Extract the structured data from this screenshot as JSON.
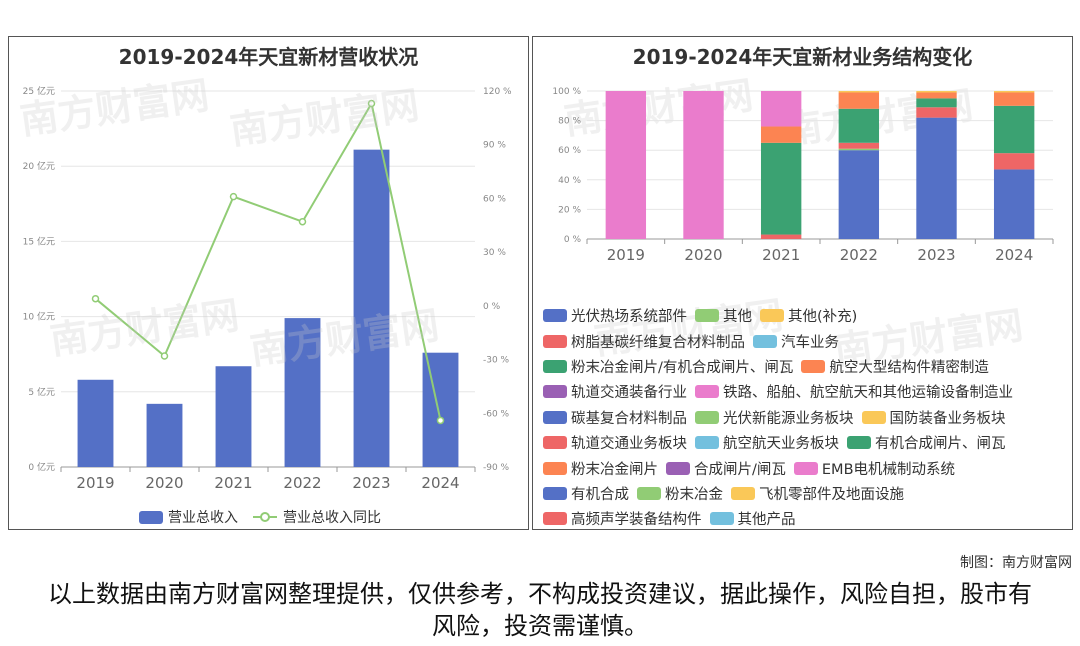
{
  "chart_data": [
    {
      "type": "bar",
      "title": "2019-2024年天宜新材营收状况",
      "categories": [
        "2019",
        "2020",
        "2021",
        "2022",
        "2023",
        "2024"
      ],
      "series": [
        {
          "name": "营业总收入",
          "type": "bar",
          "axis": "left",
          "unit": "亿元",
          "values": [
            5.8,
            4.2,
            6.7,
            9.9,
            21.1,
            7.6
          ]
        },
        {
          "name": "营业总收入同比",
          "type": "line",
          "axis": "right",
          "unit": "%",
          "values": [
            4,
            -28,
            61,
            47,
            113,
            -64
          ]
        }
      ],
      "y_left": {
        "ticks": [
          "0 亿元",
          "5 亿元",
          "10 亿元",
          "15 亿元",
          "20 亿元",
          "25 亿元"
        ],
        "ylim": [
          0,
          25
        ]
      },
      "y_right": {
        "ticks": [
          "-90 %",
          "-60 %",
          "-30 %",
          "0 %",
          "30 %",
          "60 %",
          "90 %",
          "120 %"
        ],
        "ylim": [
          -90,
          120
        ]
      },
      "grid": true,
      "colors": {
        "bar": "#5470c6",
        "line": "#91cc75"
      }
    },
    {
      "type": "bar",
      "stacked": true,
      "title": "2019-2024年天宜新材业务结构变化",
      "categories": [
        "2019",
        "2020",
        "2021",
        "2022",
        "2023",
        "2024"
      ],
      "y_ticks": [
        "0 %",
        "20 %",
        "40 %",
        "60 %",
        "80 %",
        "100 %"
      ],
      "ylim": [
        0,
        100
      ],
      "legend": [
        [
          "光伏热场系统部件",
          "其他",
          "其他(补充)"
        ],
        [
          "树脂基碳纤维复合材料制品",
          "汽车业务"
        ],
        [
          "粉末冶金闸片/有机合成闸片、闸瓦",
          "航空大型结构件精密制造"
        ],
        [
          "轨道交通装备行业",
          "铁路、船舶、航空航天和其他运输设备制造业"
        ],
        [
          "碳基复合材料制品",
          "光伏新能源业务板块",
          "国防装备业务板块"
        ],
        [
          "轨道交通业务板块",
          "航空航天业务板块",
          "有机合成闸片、闸瓦"
        ],
        [
          "粉末冶金闸片",
          "合成闸片/闸瓦",
          "EMB电机械制动系统"
        ],
        [
          "有机合成",
          "粉末冶金",
          "飞机零部件及地面设施"
        ],
        [
          "高频声学装备结构件",
          "其他产品"
        ]
      ],
      "legend_colors": [
        [
          "#5470c6",
          "#91cc75",
          "#fac858"
        ],
        [
          "#ee6666",
          "#73c0de"
        ],
        [
          "#3ba272",
          "#fc8452"
        ],
        [
          "#9a60b4",
          "#ea7ccc"
        ],
        [
          "#5470c6",
          "#91cc75",
          "#fac858"
        ],
        [
          "#ee6666",
          "#73c0de",
          "#3ba272"
        ],
        [
          "#fc8452",
          "#9a60b4",
          "#ea7ccc"
        ],
        [
          "#5470c6",
          "#91cc75",
          "#fac858"
        ],
        [
          "#ee6666",
          "#73c0de"
        ]
      ],
      "stacks": [
        [
          {
            "color": "#ea7ccc",
            "value": 100
          }
        ],
        [
          {
            "color": "#ea7ccc",
            "value": 100
          }
        ],
        [
          {
            "color": "#ee6666",
            "value": 3
          },
          {
            "color": "#3ba272",
            "value": 62
          },
          {
            "color": "#fc8452",
            "value": 11
          },
          {
            "color": "#ea7ccc",
            "value": 24
          }
        ],
        [
          {
            "color": "#5470c6",
            "value": 60
          },
          {
            "color": "#91cc75",
            "value": 1
          },
          {
            "color": "#ee6666",
            "value": 4
          },
          {
            "color": "#3ba272",
            "value": 23
          },
          {
            "color": "#fc8452",
            "value": 11
          },
          {
            "color": "#fac858",
            "value": 1
          }
        ],
        [
          {
            "color": "#5470c6",
            "value": 82
          },
          {
            "color": "#ee6666",
            "value": 7
          },
          {
            "color": "#3ba272",
            "value": 6
          },
          {
            "color": "#fc8452",
            "value": 4
          },
          {
            "color": "#fac858",
            "value": 1
          }
        ],
        [
          {
            "color": "#5470c6",
            "value": 47
          },
          {
            "color": "#ee6666",
            "value": 11
          },
          {
            "color": "#3ba272",
            "value": 32
          },
          {
            "color": "#fc8452",
            "value": 9
          },
          {
            "color": "#fac858",
            "value": 1
          }
        ]
      ]
    }
  ],
  "watermark": "南方财富网",
  "credit": "制图：南方财富网",
  "disclaimer": "以上数据由南方财富网整理提供，仅供参考，不构成投资建议，据此操作，风险自担，股市有风险，投资需谨慎。"
}
